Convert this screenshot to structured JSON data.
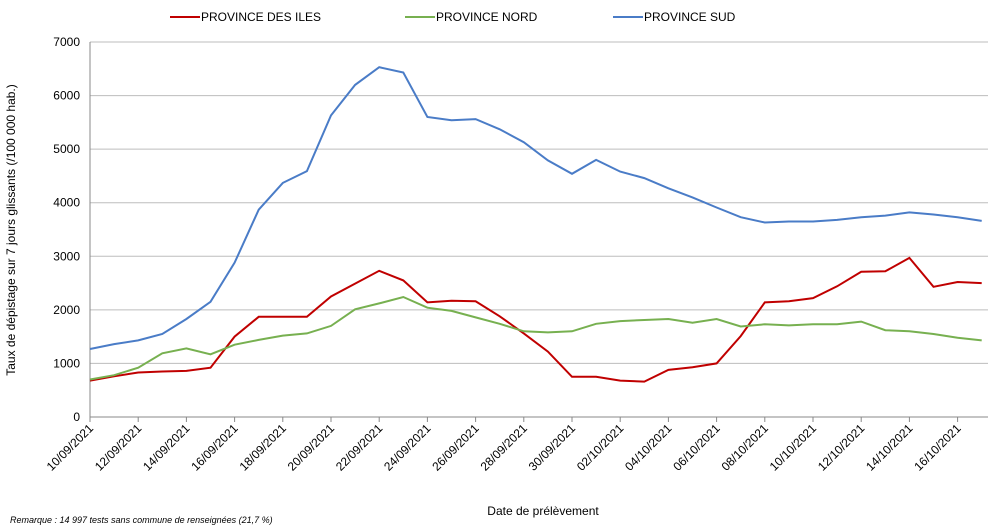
{
  "chart_data": {
    "type": "line",
    "y_label": "Taux de dépistage sur 7 jours glissants (/100 000 hab.)",
    "x_label": "Date de prélèvement",
    "note": "Remarque : 14 997 tests sans commune de renseignées (21,7 %)",
    "categories": [
      "10/09/2021",
      null,
      "12/09/2021",
      null,
      "14/09/2021",
      null,
      "16/09/2021",
      null,
      "18/09/2021",
      null,
      "20/09/2021",
      null,
      "22/09/2021",
      null,
      "24/09/2021",
      null,
      "26/09/2021",
      null,
      "28/09/2021",
      null,
      "30/09/2021",
      null,
      "02/10/2021",
      null,
      "04/10/2021",
      null,
      "06/10/2021",
      null,
      "08/10/2021",
      null,
      "10/10/2021",
      null,
      "12/10/2021",
      null,
      "14/10/2021",
      null,
      "16/10/2021",
      null
    ],
    "series": [
      {
        "name": "PROVINCE DES ILES",
        "color": "#c00000",
        "values": [
          680,
          760,
          830,
          850,
          860,
          920,
          1500,
          1870,
          1870,
          1870,
          2250,
          2490,
          2730,
          2550,
          2140,
          2170,
          2160,
          1880,
          1560,
          1220,
          750,
          750,
          680,
          660,
          880,
          930,
          1000,
          1510,
          2140,
          2160,
          2220,
          2440,
          2710,
          2720,
          2970,
          2430,
          2520,
          2500
        ]
      },
      {
        "name": "PROVINCE NORD",
        "color": "#77b050",
        "values": [
          700,
          780,
          920,
          1190,
          1280,
          1170,
          1350,
          1440,
          1520,
          1560,
          1700,
          2010,
          2120,
          2240,
          2040,
          1980,
          1860,
          1740,
          1600,
          1580,
          1600,
          1740,
          1790,
          1810,
          1830,
          1760,
          1830,
          1690,
          1730,
          1710,
          1730,
          1730,
          1780,
          1620,
          1600,
          1550,
          1480,
          1430
        ]
      },
      {
        "name": "PROVINCE SUD",
        "color": "#4a7cc7",
        "values": [
          1270,
          1360,
          1430,
          1550,
          1830,
          2150,
          2880,
          3870,
          4370,
          4590,
          5630,
          6200,
          6530,
          6430,
          5600,
          5540,
          5560,
          5370,
          5130,
          4790,
          4540,
          4800,
          4580,
          4460,
          4270,
          4100,
          3910,
          3730,
          3630,
          3650,
          3650,
          3680,
          3730,
          3760,
          3820,
          3780,
          3730,
          3660
        ]
      }
    ],
    "ylim": [
      0,
      7000
    ],
    "yticks": [
      0,
      1000,
      2000,
      3000,
      4000,
      5000,
      6000,
      7000
    ],
    "grid": true
  }
}
